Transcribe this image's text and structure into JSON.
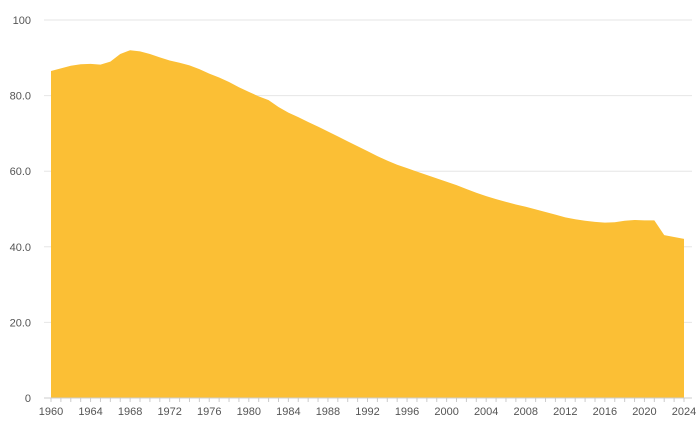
{
  "chart_data": {
    "type": "area",
    "title": "",
    "xlabel": "",
    "ylabel": "",
    "xlim": [
      1960,
      2024
    ],
    "ylim": [
      0,
      100
    ],
    "grid": true,
    "legend": "none",
    "colors": {
      "fill": "#FBBF35",
      "gridline": "#e6e6e6",
      "axis": "#cccccc",
      "tick_text": "#555555"
    },
    "y_ticks": [
      {
        "value": 0,
        "label": "0"
      },
      {
        "value": 20,
        "label": "20.0"
      },
      {
        "value": 40,
        "label": "40.0"
      },
      {
        "value": 60,
        "label": "60.0"
      },
      {
        "value": 80,
        "label": "80.0"
      },
      {
        "value": 100,
        "label": "100"
      }
    ],
    "x_ticks": [
      {
        "value": 1960,
        "label": "1960"
      },
      {
        "value": 1964,
        "label": "1964"
      },
      {
        "value": 1968,
        "label": "1968"
      },
      {
        "value": 1972,
        "label": "1972"
      },
      {
        "value": 1976,
        "label": "1976"
      },
      {
        "value": 1980,
        "label": "1980"
      },
      {
        "value": 1984,
        "label": "1984"
      },
      {
        "value": 1988,
        "label": "1988"
      },
      {
        "value": 1992,
        "label": "1992"
      },
      {
        "value": 1996,
        "label": "1996"
      },
      {
        "value": 2000,
        "label": "2000"
      },
      {
        "value": 2004,
        "label": "2004"
      },
      {
        "value": 2008,
        "label": "2008"
      },
      {
        "value": 2012,
        "label": "2012"
      },
      {
        "value": 2016,
        "label": "2016"
      },
      {
        "value": 2020,
        "label": "2020"
      },
      {
        "value": 2024,
        "label": "2024"
      }
    ],
    "x": [
      1960,
      1961,
      1962,
      1963,
      1964,
      1965,
      1966,
      1967,
      1968,
      1969,
      1970,
      1971,
      1972,
      1973,
      1974,
      1975,
      1976,
      1977,
      1978,
      1979,
      1980,
      1981,
      1982,
      1983,
      1984,
      1985,
      1986,
      1987,
      1988,
      1989,
      1990,
      1991,
      1992,
      1993,
      1994,
      1995,
      1996,
      1997,
      1998,
      1999,
      2000,
      2001,
      2002,
      2003,
      2004,
      2005,
      2006,
      2007,
      2008,
      2009,
      2010,
      2011,
      2012,
      2013,
      2014,
      2015,
      2016,
      2017,
      2018,
      2019,
      2020,
      2021,
      2022,
      2023,
      2024
    ],
    "values": [
      86.5,
      87.2,
      87.9,
      88.3,
      88.4,
      88.2,
      89.0,
      91.0,
      92.0,
      91.7,
      91.0,
      90.1,
      89.3,
      88.7,
      88.0,
      87.0,
      85.8,
      84.8,
      83.6,
      82.2,
      81.0,
      79.8,
      78.8,
      77.0,
      75.5,
      74.3,
      73.0,
      71.8,
      70.5,
      69.2,
      67.9,
      66.6,
      65.3,
      64.0,
      62.8,
      61.7,
      60.8,
      59.9,
      59.0,
      58.1,
      57.2,
      56.3,
      55.3,
      54.3,
      53.4,
      52.6,
      51.9,
      51.2,
      50.6,
      49.9,
      49.2,
      48.5,
      47.8,
      47.3,
      46.9,
      46.6,
      46.4,
      46.5,
      46.9,
      47.1,
      47.0,
      47.0,
      43.1,
      42.6,
      42.1
    ]
  }
}
